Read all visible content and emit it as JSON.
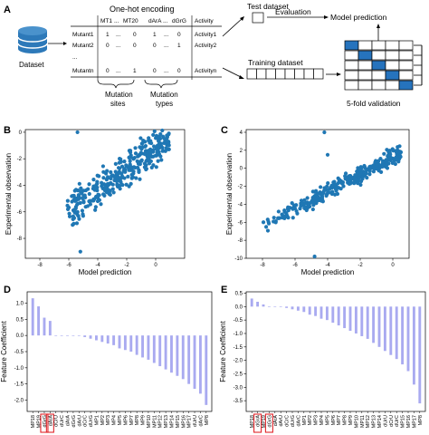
{
  "panel_a": {
    "title": "One-hot encoding",
    "dataset_label": "Dataset",
    "matrix": {
      "headers": [
        "MT1",
        "...",
        "MT20",
        "dArA",
        "...",
        "dGrG",
        "Activity"
      ],
      "rows": [
        {
          "name": "Mutant1",
          "cells": [
            "1",
            "...",
            "0",
            "1",
            "...",
            "0"
          ],
          "activity": "Activity1"
        },
        {
          "name": "Mutant2",
          "cells": [
            "0",
            "...",
            "0",
            "0",
            "...",
            "1"
          ],
          "activity": "Activity2"
        },
        {
          "name": "...",
          "cells": [
            "",
            "",
            "",
            "",
            "",
            ""
          ],
          "activity": ""
        },
        {
          "name": "Mutantn",
          "cells": [
            "0",
            "...",
            "1",
            "0",
            "...",
            "0"
          ],
          "activity": "Activityn"
        }
      ]
    },
    "mutation_sites": "Mutation\nsites",
    "mutation_types": "Mutation\ntypes",
    "test_dataset": "Test dataset",
    "evaluation": "Evaluation",
    "model_prediction": "Model prediction",
    "training_dataset": "Training dataset",
    "validation": "5-fold validation",
    "fold_positions": [
      0,
      1,
      2,
      3,
      4
    ],
    "colors": {
      "cylinder": "#2d79b9",
      "fold": "#2673bd"
    }
  },
  "panels": {
    "a": "A",
    "b": "B",
    "c": "C",
    "d": "D",
    "e": "E"
  },
  "chart_data": [
    {
      "id": "B",
      "type": "scatter",
      "xlabel": "Model prediction",
      "ylabel": "Experimental observation",
      "xlim": [
        -9,
        2
      ],
      "ylim": [
        -9.5,
        0.2
      ],
      "xticks": [
        -8,
        -6,
        -4,
        -2,
        0
      ],
      "yticks": [
        -8,
        -6,
        -4,
        -2,
        0
      ],
      "color": "#1f77b4",
      "trend": {
        "slope": 0.78,
        "intercept": -1.2,
        "x_range": [
          -6.3,
          1.0
        ],
        "spread": 1.2,
        "count": 330
      },
      "outliers": [
        [
          -5.4,
          0.0
        ],
        [
          -5.2,
          -9.0
        ],
        [
          -4.0,
          -5.2
        ]
      ]
    },
    {
      "id": "C",
      "type": "scatter",
      "xlabel": "Model prediction",
      "ylabel": "Experimental observation",
      "xlim": [
        -9,
        1
      ],
      "ylim": [
        -10,
        4.3
      ],
      "xticks": [
        -8,
        -6,
        -4,
        -2,
        0
      ],
      "yticks": [
        -10,
        -8,
        -6,
        -4,
        -2,
        0,
        2,
        4
      ],
      "color": "#1f77b4",
      "trend": {
        "slope": 0.95,
        "intercept": 1.2,
        "x_range": [
          -8.0,
          0.5
        ],
        "spread": 0.9,
        "count": 330
      },
      "outliers": [
        [
          -4.2,
          4.0
        ],
        [
          -4.0,
          1.5
        ],
        [
          -4.8,
          -9.8
        ]
      ]
    },
    {
      "id": "D",
      "type": "bar",
      "ylabel": "Feature Coefficient",
      "ylim": [
        -2.35,
        1.35
      ],
      "yticks": [
        -2.0,
        -1.5,
        -1.0,
        -0.5,
        0.0,
        0.5,
        1.0
      ],
      "color": "#a9aaf0",
      "categories": [
        "MP18",
        "MP19",
        "dGrG",
        "dArA",
        "dCrU",
        "dUrC",
        "dArA",
        "dGrG",
        "dArU",
        "dCrC",
        "dUrG",
        "MP1",
        "MP2",
        "MP3",
        "MP4",
        "MP5",
        "MP6",
        "MP7",
        "MP8",
        "MP9",
        "MP10",
        "MP11",
        "MP12",
        "MP13",
        "MP14",
        "MP15",
        "MP16",
        "MP17",
        "dUrU",
        "dArC",
        "MP8"
      ],
      "highlighted": [
        2,
        3
      ],
      "values": [
        1.15,
        0.9,
        0.55,
        0.45,
        0.0,
        0.0,
        0.0,
        0.0,
        0.0,
        -0.05,
        -0.1,
        -0.15,
        -0.2,
        -0.25,
        -0.3,
        -0.4,
        -0.45,
        -0.5,
        -0.6,
        -0.68,
        -0.75,
        -0.85,
        -0.95,
        -1.05,
        -1.15,
        -1.25,
        -1.35,
        -1.5,
        -1.65,
        -1.8,
        -2.15
      ]
    },
    {
      "id": "E",
      "type": "bar",
      "ylabel": "Feature Coefficient",
      "ylim": [
        -3.9,
        0.55
      ],
      "yticks": [
        -3.5,
        -3.0,
        -2.5,
        -2.0,
        -1.5,
        -1.0,
        -0.5,
        0.0,
        0.5
      ],
      "color": "#a9aaf0",
      "categories": [
        "MP18",
        "dGrA",
        "MP19",
        "dGrG",
        "dArA",
        "dArU",
        "dCrC",
        "dUrG",
        "dArC",
        "MP1",
        "MP2",
        "MP3",
        "MP4",
        "MP5",
        "MP6",
        "MP7",
        "MP8",
        "MP9",
        "MP10",
        "MP11",
        "MP12",
        "MP13",
        "MP14",
        "dUrU",
        "dCrU",
        "dUrC",
        "MP15",
        "MP16",
        "MP17",
        "MP8"
      ],
      "highlighted": [
        1,
        3
      ],
      "values": [
        0.3,
        0.18,
        0.08,
        0.0,
        0.0,
        0.0,
        -0.05,
        -0.1,
        -0.15,
        -0.2,
        -0.3,
        -0.35,
        -0.45,
        -0.5,
        -0.6,
        -0.7,
        -0.8,
        -0.9,
        -1.0,
        -1.1,
        -1.2,
        -1.35,
        -1.5,
        -1.65,
        -1.8,
        -1.95,
        -2.15,
        -2.4,
        -2.9,
        -3.6
      ]
    }
  ]
}
